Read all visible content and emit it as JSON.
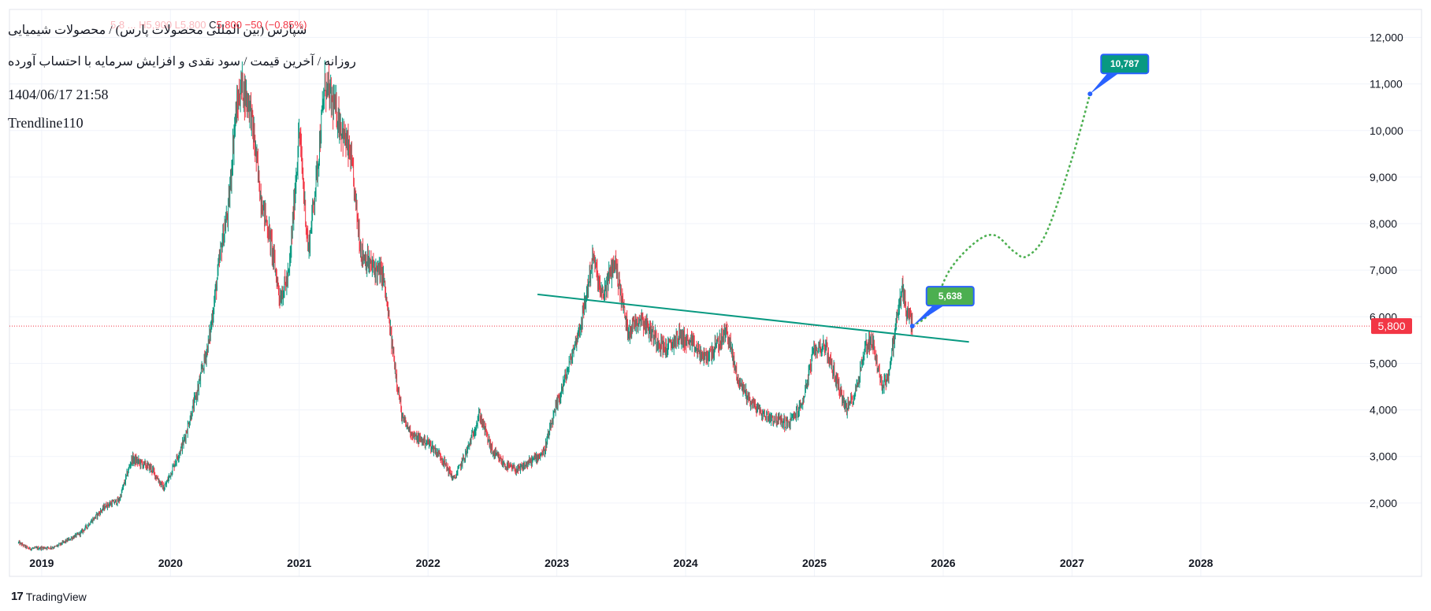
{
  "header": {
    "symbol_line": "شپارس (بین المللی محصولات پارس) / محصولات شیمیایی",
    "subtitle": "روزانه / آخرین قیمت / سود نقدی و افزایش سرمایه با احتساب آورده",
    "timestamp": "1404/06/17 21:58",
    "indicator": "Trendline110",
    "ohlc_faded": "5,8 ... H5,900 L5,800",
    "close_label": "C",
    "close_value": "5,800",
    "change": "−50 (−0.85%)"
  },
  "footer": {
    "brand": "TradingView",
    "logo": "17"
  },
  "colors": {
    "up": "#089981",
    "down": "#f23645",
    "trendline": "#089981",
    "forecast_blue": "#2962ff",
    "forecast_green": "#4caf50",
    "grid": "#f0f3fa",
    "axis_text": "#131722"
  },
  "chart_data": {
    "type": "candlestick",
    "ylim": [
      1000,
      12600
    ],
    "xlim": [
      2018.75,
      2029.2
    ],
    "y_ticks": [
      2000,
      3000,
      4000,
      5000,
      6000,
      7000,
      8000,
      9000,
      10000,
      11000,
      12000
    ],
    "y_tick_labels": [
      "2,000",
      "3,000",
      "4,000",
      "5,000",
      "6,000",
      "7,000",
      "8,000",
      "9,000",
      "10,000",
      "11,000",
      "12,000"
    ],
    "x_ticks": [
      2019,
      2020,
      2021,
      2022,
      2023,
      2024,
      2025,
      2026,
      2027,
      2028
    ],
    "x_tick_labels": [
      "2019",
      "2020",
      "2021",
      "2022",
      "2023",
      "2024",
      "2025",
      "2026",
      "2027",
      "2028"
    ],
    "last_price": 5800,
    "last_price_label": "5,800",
    "price_path": [
      [
        2018.82,
        1150
      ],
      [
        2018.9,
        1020
      ],
      [
        2019.1,
        1050
      ],
      [
        2019.3,
        1350
      ],
      [
        2019.5,
        1950
      ],
      [
        2019.6,
        2050
      ],
      [
        2019.7,
        2950
      ],
      [
        2019.85,
        2750
      ],
      [
        2019.95,
        2300
      ],
      [
        2020.1,
        3300
      ],
      [
        2020.2,
        4300
      ],
      [
        2020.3,
        5500
      ],
      [
        2020.4,
        7600
      ],
      [
        2020.45,
        8300
      ],
      [
        2020.5,
        10200
      ],
      [
        2020.55,
        11000
      ],
      [
        2020.62,
        10500
      ],
      [
        2020.7,
        8600
      ],
      [
        2020.78,
        7600
      ],
      [
        2020.85,
        6400
      ],
      [
        2020.92,
        6900
      ],
      [
        2021.0,
        10000
      ],
      [
        2021.07,
        7400
      ],
      [
        2021.14,
        9200
      ],
      [
        2021.2,
        11000
      ],
      [
        2021.3,
        10300
      ],
      [
        2021.4,
        9400
      ],
      [
        2021.48,
        7400
      ],
      [
        2021.55,
        7100
      ],
      [
        2021.65,
        6900
      ],
      [
        2021.72,
        5400
      ],
      [
        2021.8,
        3800
      ],
      [
        2021.9,
        3400
      ],
      [
        2022.0,
        3300
      ],
      [
        2022.1,
        3000
      ],
      [
        2022.2,
        2500
      ],
      [
        2022.3,
        3100
      ],
      [
        2022.4,
        3900
      ],
      [
        2022.5,
        3100
      ],
      [
        2022.6,
        2800
      ],
      [
        2022.7,
        2700
      ],
      [
        2022.8,
        2900
      ],
      [
        2022.9,
        3100
      ],
      [
        2023.0,
        4100
      ],
      [
        2023.1,
        5000
      ],
      [
        2023.2,
        6000
      ],
      [
        2023.28,
        7300
      ],
      [
        2023.35,
        6400
      ],
      [
        2023.45,
        7200
      ],
      [
        2023.55,
        5700
      ],
      [
        2023.65,
        6000
      ],
      [
        2023.75,
        5600
      ],
      [
        2023.85,
        5300
      ],
      [
        2023.95,
        5600
      ],
      [
        2024.05,
        5400
      ],
      [
        2024.15,
        5100
      ],
      [
        2024.25,
        5400
      ],
      [
        2024.32,
        5700
      ],
      [
        2024.4,
        4700
      ],
      [
        2024.5,
        4200
      ],
      [
        2024.6,
        3900
      ],
      [
        2024.7,
        3800
      ],
      [
        2024.8,
        3700
      ],
      [
        2024.9,
        4100
      ],
      [
        2025.0,
        5300
      ],
      [
        2025.08,
        5400
      ],
      [
        2025.15,
        4800
      ],
      [
        2025.25,
        4000
      ],
      [
        2025.32,
        4400
      ],
      [
        2025.4,
        5400
      ],
      [
        2025.45,
        5500
      ],
      [
        2025.52,
        4500
      ],
      [
        2025.58,
        4800
      ],
      [
        2025.63,
        5800
      ],
      [
        2025.68,
        6600
      ],
      [
        2025.72,
        6100
      ],
      [
        2025.76,
        5800
      ]
    ],
    "trendline": {
      "name": "Trendline110",
      "start": [
        2022.85,
        6480
      ],
      "end": [
        2026.2,
        5460
      ]
    },
    "forecast_path": [
      [
        2025.76,
        5800
      ],
      [
        2025.9,
        6100
      ],
      [
        2026.05,
        7000
      ],
      [
        2026.25,
        7600
      ],
      [
        2026.4,
        7750
      ],
      [
        2026.55,
        7400
      ],
      [
        2026.65,
        7300
      ],
      [
        2026.8,
        7800
      ],
      [
        2027.0,
        9400
      ],
      [
        2027.14,
        10787
      ]
    ],
    "forecast_labels": [
      {
        "text": "5,638",
        "value": 5638
      },
      {
        "text": "10,787",
        "value": 10787
      }
    ]
  }
}
